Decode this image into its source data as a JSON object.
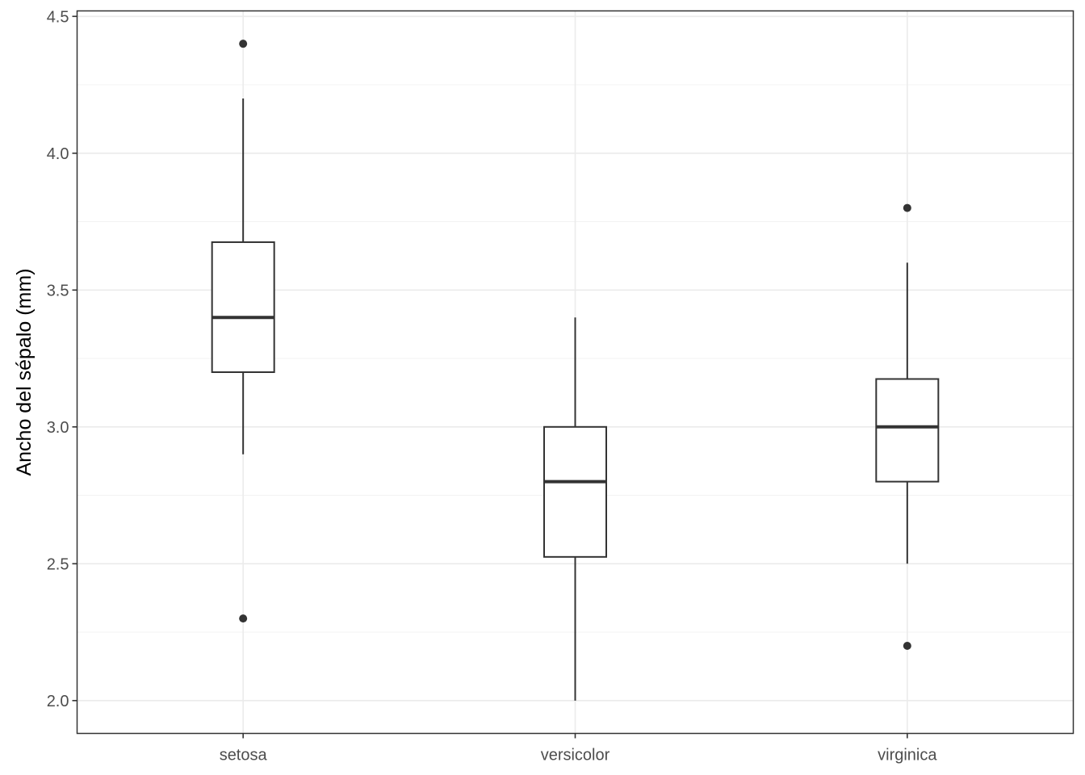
{
  "chart_data": {
    "type": "boxplot",
    "title": "",
    "xlabel": "",
    "ylabel": "Ancho del sépalo (mm)",
    "ylim": [
      1.88,
      4.52
    ],
    "y_ticks": [
      "2.0",
      "2.5",
      "3.0",
      "3.5",
      "4.0",
      "4.5"
    ],
    "y_tick_values": [
      2.0,
      2.5,
      3.0,
      3.5,
      4.0,
      4.5
    ],
    "y_minor_values": [
      2.25,
      2.75,
      3.25,
      3.75,
      4.25
    ],
    "grid": true,
    "categories": [
      "setosa",
      "versicolor",
      "virginica"
    ],
    "boxes": [
      {
        "category": "setosa",
        "whisker_low": 2.9,
        "q1": 3.2,
        "median": 3.4,
        "q3": 3.675,
        "whisker_high": 4.2,
        "outliers": [
          4.4,
          2.3
        ]
      },
      {
        "category": "versicolor",
        "whisker_low": 2.0,
        "q1": 2.525,
        "median": 2.8,
        "q3": 3.0,
        "whisker_high": 3.4,
        "outliers": []
      },
      {
        "category": "virginica",
        "whisker_low": 2.5,
        "q1": 2.8,
        "median": 3.0,
        "q3": 3.175,
        "whisker_high": 3.6,
        "outliers": [
          3.8,
          2.2
        ]
      }
    ]
  },
  "colors": {
    "background": "#ffffff",
    "panel_border": "#333333",
    "grid_major": "#ebebeb",
    "grid_minor": "#f3f3f3",
    "box_line": "#333333",
    "tick_text": "#4d4d4d",
    "title_text": "#000000"
  }
}
